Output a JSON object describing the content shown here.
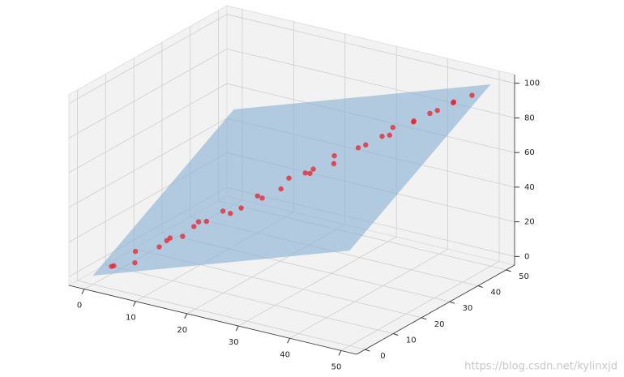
{
  "chart_data": {
    "type": "scatter3d",
    "xlim": [
      -3,
      53
    ],
    "ylim": [
      -3,
      53
    ],
    "zlim": [
      -5,
      105
    ],
    "xticks": [
      0,
      10,
      20,
      30,
      40,
      50
    ],
    "yticks": [
      0,
      10,
      20,
      30,
      40,
      50
    ],
    "zticks": [
      0,
      20,
      40,
      60,
      80,
      100
    ],
    "grid": true,
    "color": "#e8202a",
    "points": {
      "x": [
        2,
        3,
        5,
        8,
        10,
        12,
        12,
        15,
        16,
        18,
        14,
        20,
        22,
        24,
        25,
        26,
        28,
        30,
        31,
        33,
        35,
        36,
        38,
        40,
        41,
        42,
        44,
        45,
        46,
        48,
        6,
        9,
        19,
        27,
        37
      ],
      "y": [
        3,
        2,
        6,
        9,
        8,
        10,
        14,
        13,
        17,
        16,
        12,
        22,
        20,
        23,
        24,
        28,
        26,
        31,
        29,
        34,
        33,
        37,
        36,
        41,
        39,
        43,
        42,
        46,
        44,
        47,
        4,
        11,
        18,
        29,
        39
      ],
      "z": [
        4,
        6,
        12,
        14,
        20,
        22,
        24,
        30,
        33,
        34,
        30,
        40,
        42,
        46,
        52,
        52,
        55,
        62,
        60,
        66,
        70,
        72,
        75,
        80,
        82,
        84,
        88,
        90,
        92,
        95,
        8,
        18,
        36,
        54,
        76
      ]
    },
    "surface": {
      "x": [
        0,
        50,
        50,
        0
      ],
      "y": [
        0,
        0,
        50,
        50
      ],
      "z": [
        0,
        50,
        100,
        50
      ],
      "color": "#8fb4d6"
    }
  },
  "watermark": "https://blog.csdn.net/kylinxjd"
}
